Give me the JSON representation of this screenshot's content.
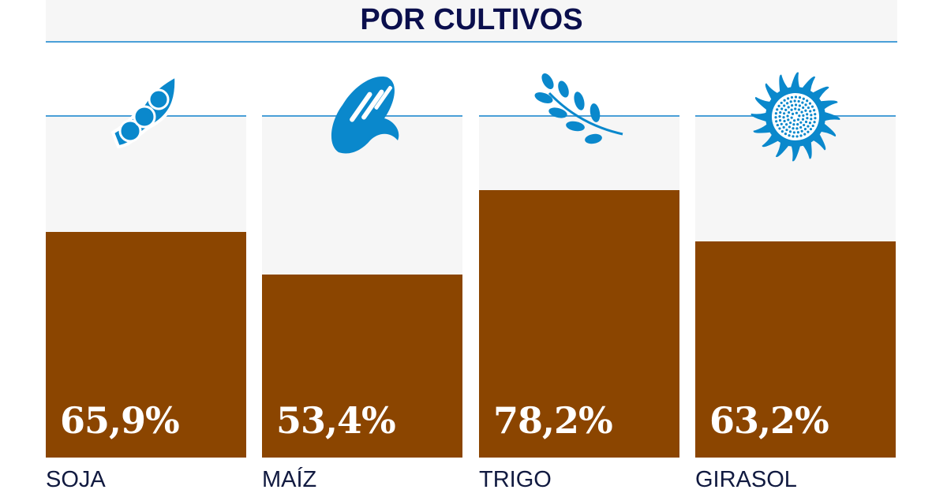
{
  "chart_data": {
    "type": "bar",
    "title": "POR CULTIVOS",
    "categories": [
      "SOJA",
      "MAÍZ",
      "TRIGO",
      "GIRASOL"
    ],
    "values": [
      65.9,
      53.4,
      78.2,
      63.2
    ],
    "value_labels": [
      "65,9%",
      "53,4%",
      "78,2%",
      "63,2%"
    ],
    "icons": [
      "soybean-icon",
      "corn-icon",
      "wheat-icon",
      "sunflower-icon"
    ],
    "ylim": [
      0,
      100
    ],
    "grid": false,
    "colors": {
      "bar": "#8b4500",
      "background": "#f6f6f6",
      "accent": "#0a88cc",
      "title": "#0b0f4d"
    }
  }
}
